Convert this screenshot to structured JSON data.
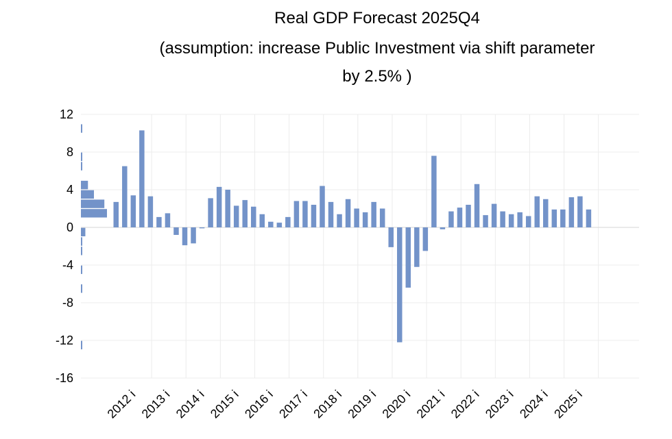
{
  "chart_data": {
    "type": "bar",
    "title_lines": [
      "Real GDP  Forecast 2025Q4",
      "(assumption: increase Public Investment via shift parameter",
      "by 2.5% )"
    ],
    "ylim": [
      -16,
      12
    ],
    "yticks": [
      12,
      8,
      4,
      0,
      -4,
      -8,
      -12,
      -16
    ],
    "grid": true,
    "bar_color": "#7393c9",
    "xtick_labels": [
      "2012 i",
      "2013 i",
      "2014 i",
      "2015 i",
      "2016 i",
      "2017 i",
      "2018 i",
      "2019 i",
      "2020 i",
      "2021 i",
      "2022 i",
      "2023 i",
      "2024 i",
      "2025 i"
    ],
    "series": [
      {
        "values": [
          2.7,
          6.5,
          3.4,
          10.3,
          3.3,
          1.1,
          1.5,
          -0.8,
          -1.9,
          -1.7,
          -0.1,
          3.1,
          4.3,
          4.0,
          2.3,
          2.9,
          2.2,
          1.4,
          0.6,
          0.5,
          1.1,
          2.8,
          2.8,
          2.4,
          4.4,
          2.7,
          1.4,
          3.0,
          2.0,
          1.6,
          2.7,
          2.0,
          -2.1,
          -12.2,
          -6.4,
          -4.2,
          -2.5,
          7.6,
          -0.2,
          1.7,
          2.1,
          2.4,
          4.6,
          1.3,
          2.5,
          1.7,
          1.4,
          1.6,
          1.2,
          3.3,
          3.0,
          1.9,
          1.9,
          3.2,
          3.3,
          1.9
        ]
      }
    ],
    "distribution": {
      "bins": [
        {
          "y_center": 10.5,
          "count": 0.03
        },
        {
          "y_center": 7.5,
          "count": 0.03
        },
        {
          "y_center": 6.5,
          "count": 0.03
        },
        {
          "y_center": 4.5,
          "count": 0.27
        },
        {
          "y_center": 3.5,
          "count": 0.5
        },
        {
          "y_center": 2.5,
          "count": 0.9
        },
        {
          "y_center": 1.5,
          "count": 1.0
        },
        {
          "y_center": -0.5,
          "count": 0.17
        },
        {
          "y_center": -1.5,
          "count": 0.03
        },
        {
          "y_center": -2.5,
          "count": 0.03
        },
        {
          "y_center": -4.5,
          "count": 0.03
        },
        {
          "y_center": -6.5,
          "count": 0.03
        },
        {
          "y_center": -12.5,
          "count": 0.03
        }
      ]
    }
  }
}
